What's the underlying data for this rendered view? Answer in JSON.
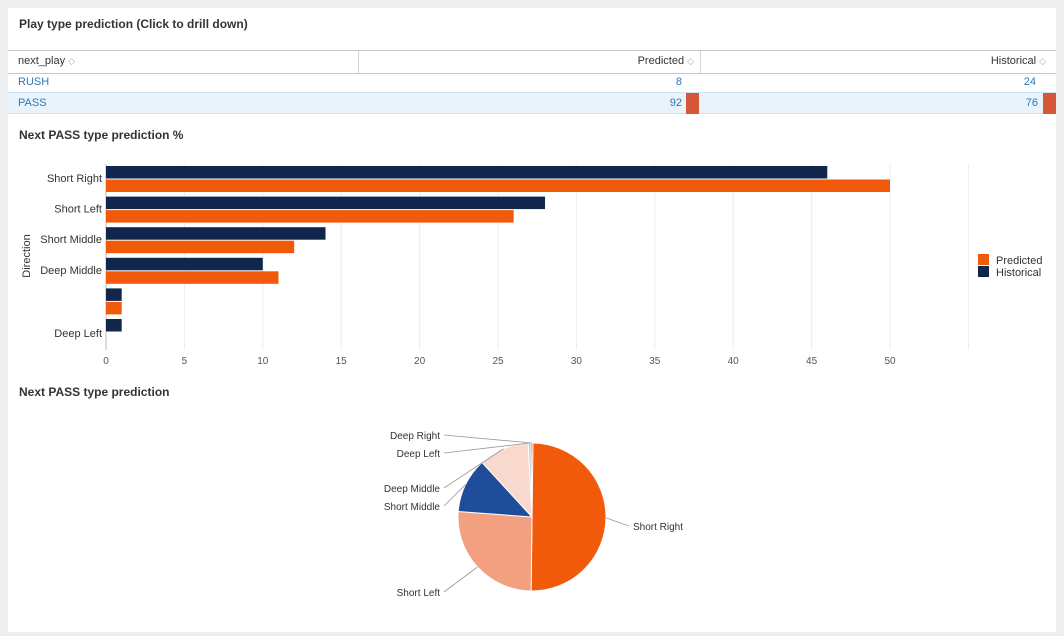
{
  "table": {
    "title": "Play type prediction (Click to drill down)",
    "columns": [
      "next_play",
      "Predicted",
      "Historical"
    ],
    "rows": [
      {
        "next_play": "RUSH",
        "predicted": "8",
        "historical": "24"
      },
      {
        "next_play": "PASS",
        "predicted": "92",
        "historical": "76"
      }
    ]
  },
  "bar_chart": {
    "title": "Next PASS type prediction %",
    "chart_data": {
      "type": "bar",
      "orientation": "horizontal",
      "ylabel": "Direction",
      "categories": [
        "Short Right",
        "Short Left",
        "Short Middle",
        "Deep Middle",
        "",
        "Deep Left"
      ],
      "series": [
        {
          "name": "Predicted",
          "color": "#f15a0a",
          "values": [
            50,
            26,
            12,
            11,
            1,
            0
          ]
        },
        {
          "name": "Historical",
          "color": "#10264d",
          "values": [
            46,
            28,
            14,
            10,
            1,
            1
          ]
        }
      ],
      "xlim": [
        0,
        55
      ],
      "xticks": [
        0,
        5,
        10,
        15,
        20,
        25,
        30,
        35,
        40,
        45,
        50
      ],
      "legend": "right",
      "grid": true
    }
  },
  "pie_chart": {
    "title": "Next PASS type prediction",
    "chart_data": {
      "type": "pie",
      "labels": [
        "Short Right",
        "Short Left",
        "Short Middle",
        "Deep Middle",
        "Deep Left",
        "Deep Right"
      ],
      "values": [
        50,
        26,
        12,
        11,
        0.6,
        0.4
      ],
      "colors": [
        "#f15a0a",
        "#f2a07f",
        "#1f4d9a",
        "#f9d8cd",
        "#b8c7e0",
        "#f15a0a"
      ]
    }
  }
}
